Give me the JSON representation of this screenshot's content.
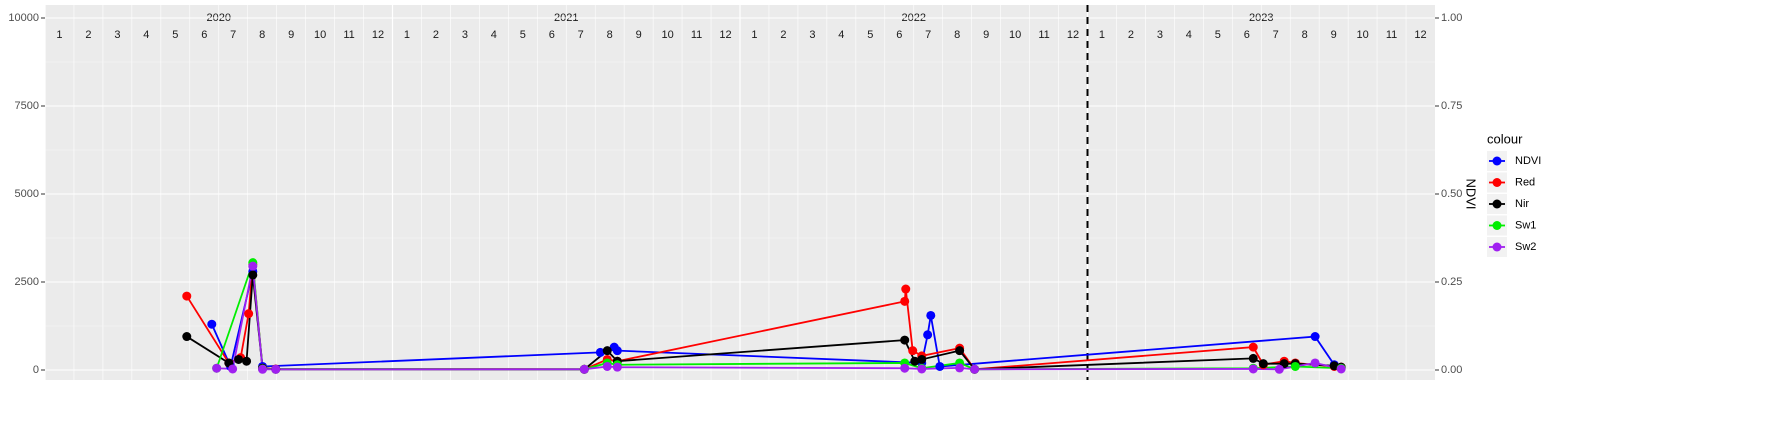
{
  "chart_data": {
    "type": "line",
    "years": [
      "2020",
      "2021",
      "2022",
      "2023"
    ],
    "months": [
      "1",
      "2",
      "3",
      "4",
      "5",
      "6",
      "7",
      "8",
      "9",
      "10",
      "11",
      "12"
    ],
    "xlim": [
      2020,
      2024
    ],
    "ylim": [
      0,
      10000
    ],
    "yticks": [
      0,
      2500,
      5000,
      7500,
      10000
    ],
    "y2label": "NDVI",
    "y2lim": [
      0,
      1
    ],
    "y2ticks": [
      {
        "value": 0,
        "label": "0.00"
      },
      {
        "value": 0.25,
        "label": "0.25"
      },
      {
        "value": 0.5,
        "label": "0.50"
      },
      {
        "value": 0.75,
        "label": "0.75"
      },
      {
        "value": 1,
        "label": "1.00"
      }
    ],
    "vline": 2023,
    "legend_title": "colour",
    "grid": true,
    "series": [
      {
        "name": "NDVI",
        "color": "#0000ff",
        "axis": "y2",
        "x": [
          2020.48,
          2020.534,
          2020.598,
          2020.626,
          2021.598,
          2021.638,
          2021.647,
          2022.523,
          2022.54,
          2022.549,
          2022.575,
          2023.655,
          2023.71
        ],
        "values": [
          0.13,
          0.01,
          0.28,
          0.01,
          0.05,
          0.065,
          0.055,
          0.02,
          0.1,
          0.155,
          0.01,
          0.095,
          0.015
        ]
      },
      {
        "name": "Red",
        "color": "#ff0000",
        "x": [
          2020.408,
          2020.529,
          2020.563,
          2020.586,
          2020.598,
          2020.626,
          2020.664,
          2021.552,
          2021.618,
          2021.647,
          2022.474,
          2022.477,
          2022.497,
          2022.523,
          2022.632,
          2022.675,
          2023.477,
          2023.506,
          2023.566,
          2023.598,
          2023.71,
          2023.73
        ],
        "values": [
          2100,
          200,
          350,
          1600,
          3000,
          50,
          30,
          20,
          300,
          250,
          1950,
          2300,
          550,
          400,
          620,
          20,
          650,
          150,
          250,
          200,
          100,
          80
        ]
      },
      {
        "name": "Nir",
        "color": "#000000",
        "x": [
          2020.408,
          2020.529,
          2020.557,
          2020.58,
          2020.598,
          2020.626,
          2020.664,
          2021.552,
          2021.618,
          2021.647,
          2022.474,
          2022.503,
          2022.523,
          2022.632,
          2022.675,
          2023.477,
          2023.506,
          2023.566,
          2023.598,
          2023.71,
          2023.73
        ],
        "values": [
          950,
          200,
          300,
          250,
          2700,
          50,
          20,
          20,
          550,
          250,
          850,
          250,
          300,
          550,
          20,
          330,
          180,
          180,
          180,
          120,
          80
        ]
      },
      {
        "name": "Sw1",
        "color": "#00ee00",
        "x": [
          2020.494,
          2020.598,
          2020.626,
          2021.552,
          2021.618,
          2021.647,
          2022.474,
          2022.523,
          2022.632,
          2022.675,
          2023.477,
          2023.598,
          2023.73
        ],
        "values": [
          50,
          3050,
          30,
          20,
          200,
          150,
          200,
          50,
          200,
          20,
          50,
          100,
          50
        ]
      },
      {
        "name": "Sw2",
        "color": "#a020f0",
        "x": [
          2020.494,
          2020.54,
          2020.598,
          2020.626,
          2020.664,
          2021.552,
          2021.618,
          2021.647,
          2022.474,
          2022.523,
          2022.632,
          2022.675,
          2023.477,
          2023.552,
          2023.655,
          2023.73
        ],
        "values": [
          50,
          30,
          2950,
          20,
          20,
          20,
          100,
          80,
          50,
          30,
          60,
          20,
          30,
          20,
          200,
          30
        ]
      }
    ]
  }
}
